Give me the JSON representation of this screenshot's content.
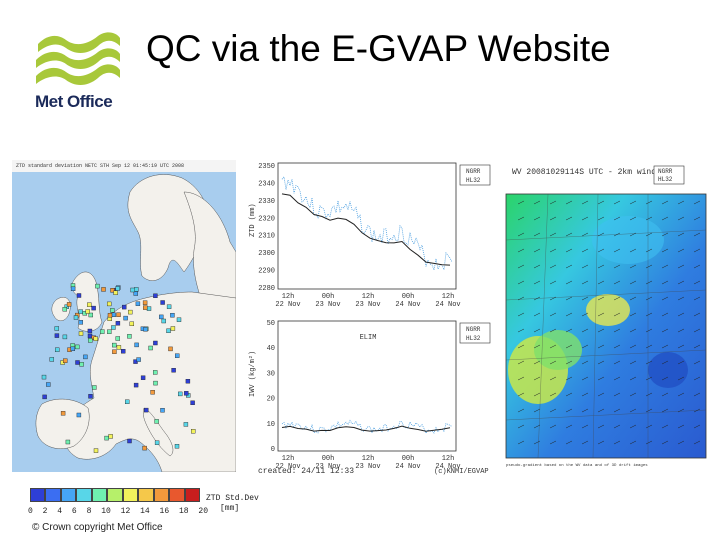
{
  "slide": {
    "title": "QC via the E-GVAP Website",
    "logo_text": "Met Office",
    "copyright": "© Crown copyright   Met Office"
  },
  "map": {
    "header": "ZTD standard deviation NETC STH Sep 12 01:45:19 UTC 2008",
    "legend_title_1": "ZTD Std.Dev",
    "legend_title_2": "[mm]",
    "legend_ticks": [
      "0",
      "2",
      "4",
      "6",
      "8",
      "10",
      "12",
      "14",
      "16",
      "18",
      "20"
    ],
    "legend_colors": [
      "#2e3fd6",
      "#3b6ef2",
      "#46a6f5",
      "#58d6e8",
      "#6ff0b0",
      "#b6f06a",
      "#f2f25c",
      "#f5c84a",
      "#f29a3c",
      "#e8582e",
      "#c81e1e"
    ]
  },
  "timeseries": {
    "ztd_ylabel": "ZTD (mm)",
    "ztd_ticks": [
      "2350",
      "2340",
      "2330",
      "2320",
      "2310",
      "2300",
      "2290",
      "2280"
    ],
    "iwv_ylabel": "IWV (kg/m²)",
    "iwv_title": "ELIM",
    "iwv_ticks": [
      "50",
      "40",
      "30",
      "20",
      "10",
      "0"
    ],
    "x_ticks_top": [
      "12h",
      "00h",
      "12h",
      "00h",
      "12h"
    ],
    "x_ticks_bottom": [
      "22 Nov",
      "23 Nov",
      "23 Nov",
      "24 Nov",
      "24 Nov"
    ],
    "legend_a": "NGRR",
    "legend_b": "HL32",
    "created": "created: 24/11 12:33",
    "credit": "(c)KNMI/EGVAP"
  },
  "wind_map": {
    "title": "WV 20081029114S UTC - 2km winds",
    "legend_a": "NGRR",
    "legend_b": "HL32",
    "footer": "pseudo-gradient based on the WV data and of 3D drift images"
  },
  "colors": {
    "logo_green": "#a8c83a",
    "logo_navy": "#1b2a5a"
  }
}
